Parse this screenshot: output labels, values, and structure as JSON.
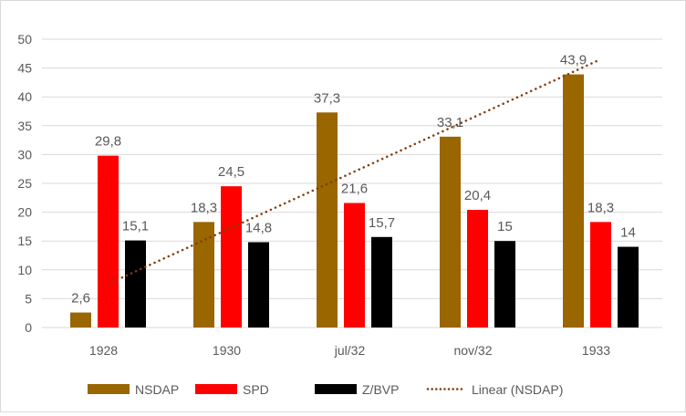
{
  "chart_data": {
    "type": "bar",
    "title": "",
    "xlabel": "",
    "ylabel": "",
    "ylim": [
      0,
      50
    ],
    "yticks": [
      0,
      5,
      10,
      15,
      20,
      25,
      30,
      35,
      40,
      45,
      50
    ],
    "grid": true,
    "legend_position": "bottom",
    "categories": [
      "1928",
      "1930",
      "jul/32",
      "nov/32",
      "1933"
    ],
    "series": [
      {
        "name": "NSDAP",
        "color": "#996600",
        "values": [
          2.6,
          18.3,
          37.3,
          33.1,
          43.9
        ],
        "labels": [
          "2,6",
          "18,3",
          "37,3",
          "33,1",
          "43,9"
        ]
      },
      {
        "name": "SPD",
        "color": "#ff0000",
        "values": [
          29.8,
          24.5,
          21.6,
          20.4,
          18.3
        ],
        "labels": [
          "29,8",
          "24,5",
          "21,6",
          "20,4",
          "18,3"
        ]
      },
      {
        "name": "Z/BVP",
        "color": "#000000",
        "values": [
          15.1,
          14.8,
          15.7,
          15,
          14
        ],
        "labels": [
          "15,1",
          "14,8",
          "15,7",
          "15",
          "14"
        ]
      }
    ],
    "trendline": {
      "name": "Linear (NSDAP)",
      "type": "linear",
      "of_series": "NSDAP",
      "color": "#843c0c",
      "start_value": 7.56,
      "end_value": 46.52
    }
  }
}
